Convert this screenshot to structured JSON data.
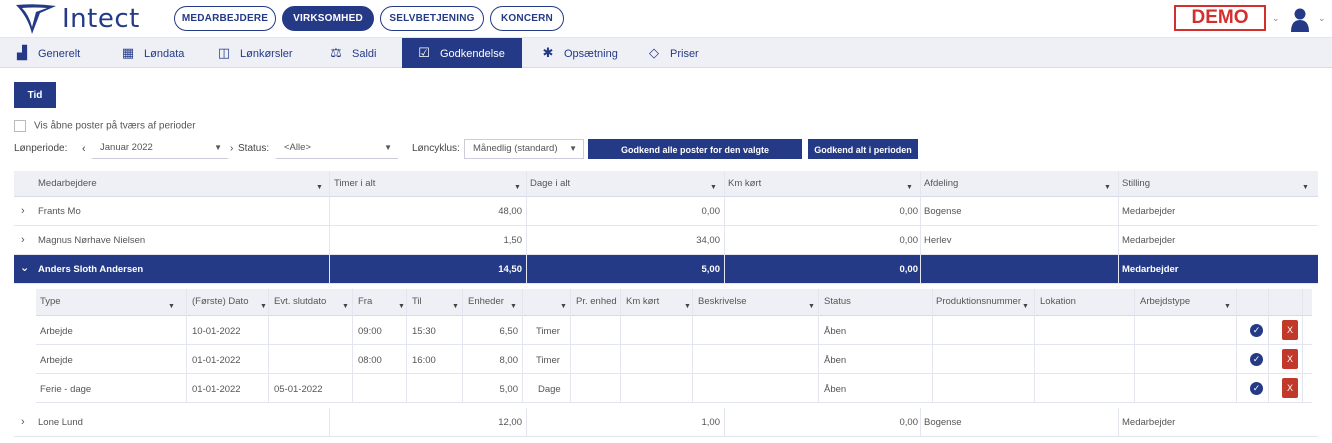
{
  "app": {
    "name": "Intect",
    "demo_badge": "DEMO"
  },
  "top_nav": [
    {
      "label": "MEDARBEJDERE",
      "active": false
    },
    {
      "label": "VIRKSOMHED",
      "active": true
    },
    {
      "label": "SELVBETJENING",
      "active": false
    },
    {
      "label": "KONCERN",
      "active": false
    }
  ],
  "tabs": [
    {
      "label": "Generelt",
      "icon": "bar-chart-icon"
    },
    {
      "label": "Løndata",
      "icon": "table-icon"
    },
    {
      "label": "Lønkørsler",
      "icon": "columns-icon"
    },
    {
      "label": "Saldi",
      "icon": "scale-icon"
    },
    {
      "label": "Godkendelse",
      "icon": "calendar-check-icon",
      "active": true
    },
    {
      "label": "Opsætning",
      "icon": "gear-icon"
    },
    {
      "label": "Priser",
      "icon": "diamond-icon"
    }
  ],
  "tid_button": "Tid",
  "show_open_checkbox": "Vis åbne poster på tværs af perioder",
  "filters": {
    "period_label": "Lønperiode:",
    "period_value": "Januar 2022",
    "status_label": "Status:",
    "status_value": "<Alle>",
    "cycle_label": "Løncyklus:",
    "cycle_value": "Månedlig (standard)",
    "approve_employee": "Godkend alle poster for den valgte medarbejder",
    "approve_period": "Godkend alt i perioden"
  },
  "grid": {
    "columns": [
      "Medarbejdere",
      "Timer i alt",
      "Dage i alt",
      "Km kørt",
      "Afdeling",
      "Stilling"
    ],
    "rows": [
      {
        "name": "Frants Mo",
        "hours": "48,00",
        "days": "0,00",
        "km": "0,00",
        "dept": "Bogense",
        "title": "Medarbejder"
      },
      {
        "name": "Magnus Nørhave Nielsen",
        "hours": "1,50",
        "days": "34,00",
        "km": "0,00",
        "dept": "Herlev",
        "title": "Medarbejder"
      },
      {
        "name": "Anders Sloth Andersen",
        "hours": "14,50",
        "days": "5,00",
        "km": "0,00",
        "dept": "",
        "title": "Medarbejder"
      },
      {
        "name": "Lone Lund",
        "hours": "12,00",
        "days": "1,00",
        "km": "0,00",
        "dept": "Bogense",
        "title": "Medarbejder"
      }
    ]
  },
  "subgrid": {
    "columns": [
      "Type",
      "(Første) Dato",
      "Evt. slutdato",
      "Fra",
      "Til",
      "Enheder",
      "",
      "Pr. enhed",
      "Km kørt",
      "Beskrivelse",
      "Status",
      "Produktionsnummer",
      "Lokation",
      "Arbejdstype"
    ],
    "rows": [
      {
        "type": "Arbejde",
        "date": "10-01-2022",
        "end": "",
        "from": "09:00",
        "to": "15:30",
        "units": "6,50",
        "unit": "Timer",
        "status": "Åben",
        "delete": "X"
      },
      {
        "type": "Arbejde",
        "date": "01-01-2022",
        "end": "",
        "from": "08:00",
        "to": "16:00",
        "units": "8,00",
        "unit": "Timer",
        "status": "Åben",
        "delete": "X"
      },
      {
        "type": "Ferie - dage",
        "date": "01-01-2022",
        "end": "05-01-2022",
        "from": "",
        "to": "",
        "units": "5,00",
        "unit": "Dage",
        "status": "Åben",
        "delete": "X"
      }
    ]
  },
  "colors": {
    "primary": "#253a86",
    "danger": "#c0392b",
    "header_bg": "#eef0f6"
  }
}
